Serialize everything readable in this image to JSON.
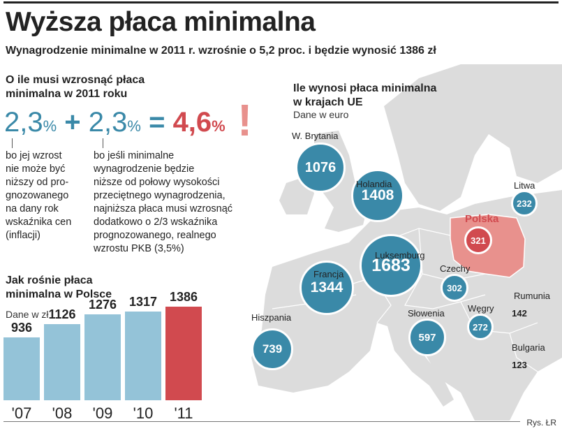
{
  "header": {
    "title": "Wyższa płaca minimalna",
    "subtitle": "Wynagrodzenie minimalne w 2011 r. wzrośnie o 5,2 proc. i będzie wynosić 1386 zł"
  },
  "increase": {
    "heading_line1": "O ile musi wzrosnąć płaca",
    "heading_line2": "minimalna w 2011 roku",
    "part1_value": "2,3",
    "part2_value": "2,3",
    "result_value": "4,6",
    "percent_sign": "%",
    "plus_sign": "+",
    "equals_sign": "=",
    "exclamation": "!",
    "note1_lines": [
      "bo jej wzrost",
      "nie może być",
      "niższy od pro-",
      "gnozowanego",
      "na dany rok",
      "wskaźnika cen",
      "(inflacji)"
    ],
    "note2_lines": [
      "bo jeśli minimalne",
      "wynagrodzenie będzie",
      "niższe od połowy wysokości",
      "przeciętnego wynagrodzenia,",
      "najniższa płaca musi wzrosnąć",
      "dodatkowo o 2/3 wskaźnika",
      "prognozowanego, realnego",
      "wzrostu PKB (3,5%)"
    ]
  },
  "colors": {
    "blue_bar": "#94c3d8",
    "red_bar": "#d14a4f",
    "bubble": "#3a89a8",
    "poland": "#e8918d",
    "land": "#dcdcdc",
    "sea": "#ffffff"
  },
  "chart_data": [
    {
      "type": "bar",
      "title": "Jak rośnie płaca minimalna w Polsce",
      "unit_label": "Dane w zł",
      "categories": [
        "'07",
        "'08",
        "'09",
        "'10",
        "'11"
      ],
      "values": [
        936,
        1126,
        1276,
        1317,
        1386
      ],
      "highlight_index": 4,
      "ylim": [
        0,
        1500
      ]
    },
    {
      "type": "bubble-map",
      "title": "Ile wynosi płaca minimalna w krajach UE",
      "unit_label": "Dane w euro",
      "points": [
        {
          "country": "W. Brytania",
          "value": 1076
        },
        {
          "country": "Holandia",
          "value": 1408
        },
        {
          "country": "Luksemburg",
          "value": 1683
        },
        {
          "country": "Francja",
          "value": 1344
        },
        {
          "country": "Hiszpania",
          "value": 739
        },
        {
          "country": "Słowenia",
          "value": 597
        },
        {
          "country": "Czechy",
          "value": 302
        },
        {
          "country": "Węgry",
          "value": 272
        },
        {
          "country": "Litwa",
          "value": 232
        },
        {
          "country": "Rumunia",
          "value": 142
        },
        {
          "country": "Bulgaria",
          "value": 123
        },
        {
          "country": "Polska",
          "value": 321
        }
      ]
    }
  ],
  "chart_text": {
    "bars_heading_line1": "Jak rośnie płaca",
    "bars_heading_line2": "minimalna w Polsce",
    "bars_unit": "Dane w zł",
    "map_heading_line1": "Ile wynosi płaca minimalna",
    "map_heading_line2": "w krajach UE",
    "map_unit": "Dane w euro"
  },
  "footer": {
    "credit": "Rys. ŁR"
  }
}
